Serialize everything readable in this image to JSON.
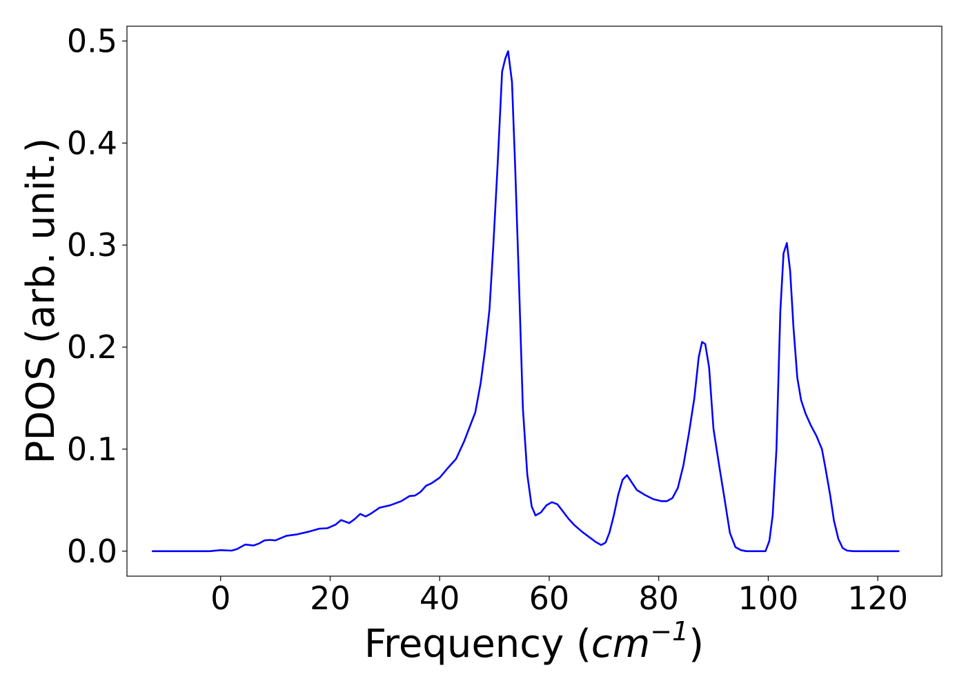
{
  "chart_data": {
    "type": "line",
    "title": "",
    "xlabel": {
      "prefix": "Frequency (",
      "unit_base": "cm",
      "unit_exponent": "−1",
      "suffix": ")"
    },
    "ylabel": "PDOS (arb. unit.)",
    "xlim": [
      -17.1,
      131.7
    ],
    "ylim": [
      -0.0245,
      0.5145
    ],
    "xticks": [
      0,
      20,
      40,
      60,
      80,
      100,
      120
    ],
    "yticks": [
      0.0,
      0.1,
      0.2,
      0.3,
      0.4,
      0.5
    ],
    "xtick_labels": [
      "0",
      "20",
      "40",
      "60",
      "80",
      "100",
      "120"
    ],
    "ytick_labels": [
      "0.0",
      "0.1",
      "0.2",
      "0.3",
      "0.4",
      "0.5"
    ],
    "grid": false,
    "legend": "none",
    "series": [
      {
        "color": "#0000ff",
        "x": [
          -12.4,
          -10.0,
          -6.0,
          -2.0,
          0.0,
          2.0,
          3.0,
          4.5,
          6.0,
          7.0,
          8.0,
          9.0,
          10.0,
          12.0,
          14.0,
          16.0,
          18.0,
          19.5,
          21.0,
          22.0,
          23.5,
          24.5,
          25.5,
          26.5,
          27.5,
          29.0,
          31.0,
          33.0,
          34.5,
          35.5,
          36.5,
          37.5,
          38.5,
          40.0,
          41.5,
          43.0,
          44.5,
          45.5,
          46.5,
          47.5,
          48.3,
          49.1,
          49.8,
          50.6,
          51.4,
          52.0,
          52.5,
          53.2,
          53.8,
          54.5,
          55.2,
          56.0,
          56.8,
          57.5,
          58.5,
          59.5,
          60.5,
          61.5,
          62.5,
          63.5,
          64.5,
          66.0,
          67.5,
          68.5,
          69.5,
          70.3,
          71.0,
          71.8,
          72.6,
          73.4,
          74.2,
          75.0,
          76.0,
          77.5,
          79.0,
          80.5,
          81.5,
          82.5,
          83.5,
          84.5,
          85.5,
          86.5,
          87.3,
          87.9,
          88.5,
          89.2,
          90.0,
          91.0,
          92.0,
          93.0,
          94.0,
          95.0,
          96.0,
          97.0,
          98.0,
          98.8,
          99.5,
          100.2,
          100.8,
          101.5,
          102.2,
          102.8,
          103.4,
          104.0,
          104.6,
          105.3,
          106.0,
          106.8,
          107.8,
          108.8,
          109.8,
          110.5,
          111.3,
          112.0,
          112.8,
          113.6,
          114.4,
          115.5,
          117.0,
          120.0,
          123.8
        ],
        "y": [
          0.0,
          0.0,
          0.0,
          0.0,
          0.001,
          0.0005,
          0.002,
          0.0065,
          0.0055,
          0.0075,
          0.0105,
          0.011,
          0.0105,
          0.015,
          0.0165,
          0.019,
          0.022,
          0.0225,
          0.026,
          0.0305,
          0.0275,
          0.0315,
          0.0365,
          0.034,
          0.037,
          0.0425,
          0.045,
          0.049,
          0.054,
          0.0545,
          0.058,
          0.064,
          0.0665,
          0.072,
          0.0815,
          0.0905,
          0.108,
          0.122,
          0.136,
          0.165,
          0.198,
          0.237,
          0.3,
          0.38,
          0.47,
          0.483,
          0.49,
          0.46,
          0.375,
          0.26,
          0.14,
          0.075,
          0.044,
          0.035,
          0.038,
          0.045,
          0.048,
          0.046,
          0.039,
          0.032,
          0.026,
          0.019,
          0.013,
          0.009,
          0.006,
          0.0085,
          0.018,
          0.035,
          0.055,
          0.07,
          0.0745,
          0.068,
          0.06,
          0.055,
          0.051,
          0.049,
          0.049,
          0.052,
          0.062,
          0.084,
          0.115,
          0.15,
          0.19,
          0.205,
          0.203,
          0.18,
          0.12,
          0.085,
          0.052,
          0.018,
          0.004,
          0.001,
          0.0,
          0.0,
          0.0,
          0.0,
          0.0,
          0.01,
          0.035,
          0.1,
          0.235,
          0.292,
          0.302,
          0.275,
          0.22,
          0.17,
          0.148,
          0.135,
          0.123,
          0.113,
          0.1,
          0.08,
          0.055,
          0.03,
          0.012,
          0.003,
          0.0005,
          0.0,
          0.0,
          0.0,
          0.0
        ]
      }
    ]
  }
}
